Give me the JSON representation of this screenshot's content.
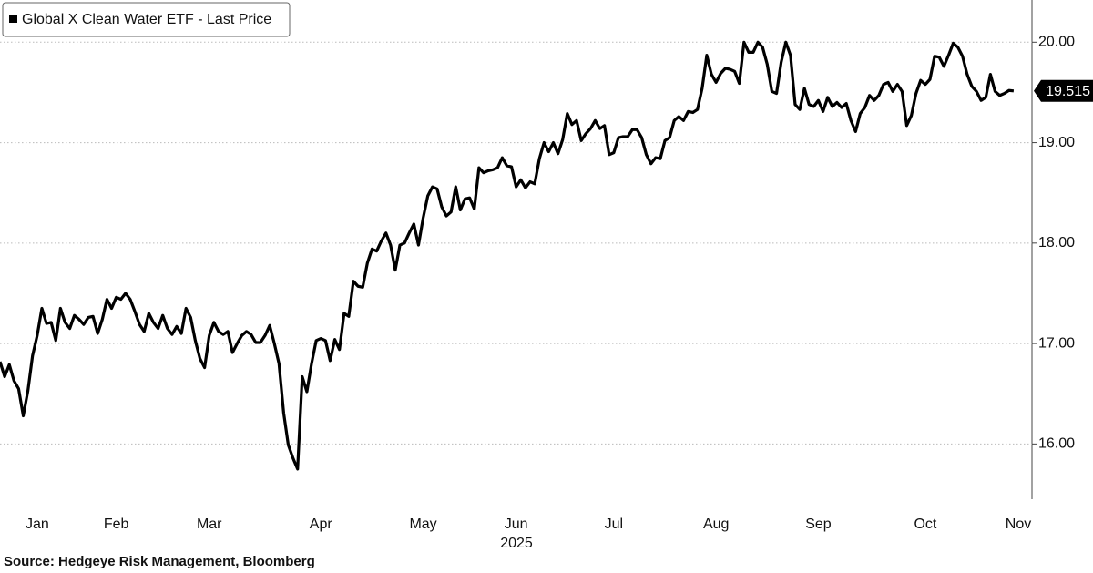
{
  "chart_data": {
    "type": "line",
    "year_label": "2025",
    "source": "Source: Hedgeye Risk Management, Bloomberg",
    "categories": [
      null,
      null,
      null,
      null,
      null,
      null,
      null,
      null,
      "Jan",
      null,
      null,
      null,
      null,
      null,
      null,
      null,
      null,
      null,
      null,
      null,
      null,
      null,
      null,
      null,
      null,
      "Feb",
      null,
      null,
      null,
      null,
      null,
      null,
      null,
      null,
      null,
      null,
      null,
      null,
      null,
      null,
      null,
      null,
      null,
      null,
      null,
      "Mar",
      null,
      null,
      null,
      null,
      null,
      null,
      null,
      null,
      null,
      null,
      null,
      null,
      null,
      null,
      null,
      null,
      null,
      null,
      null,
      null,
      null,
      null,
      null,
      "Apr",
      null,
      null,
      null,
      null,
      null,
      null,
      null,
      null,
      null,
      null,
      null,
      null,
      null,
      null,
      null,
      null,
      null,
      null,
      null,
      null,
      null,
      "May",
      null,
      null,
      null,
      null,
      null,
      null,
      null,
      null,
      null,
      null,
      null,
      null,
      null,
      null,
      null,
      null,
      null,
      null,
      null,
      "Jun",
      null,
      null,
      null,
      null,
      null,
      null,
      null,
      null,
      null,
      null,
      null,
      null,
      null,
      null,
      null,
      null,
      null,
      null,
      null,
      null,
      "Jul",
      null,
      null,
      null,
      null,
      null,
      null,
      null,
      null,
      null,
      null,
      null,
      null,
      null,
      null,
      null,
      null,
      null,
      null,
      null,
      null,
      null,
      "Aug",
      null,
      null,
      null,
      null,
      null,
      null,
      null,
      null,
      null,
      null,
      null,
      null,
      null,
      null,
      null,
      null,
      null,
      null,
      null,
      null,
      null,
      "Sep",
      null,
      null,
      null,
      null,
      null,
      null,
      null,
      null,
      null,
      null,
      null,
      null,
      null,
      null,
      null,
      null,
      null,
      null,
      null,
      null,
      null,
      null,
      "Oct",
      null,
      null,
      null,
      null,
      null,
      null,
      null,
      null,
      null,
      null,
      null,
      null,
      null,
      null,
      null,
      null,
      null,
      null,
      null,
      "Nov"
    ],
    "series": [
      {
        "name": "Global X Clean Water ETF - Last Price",
        "color": "#000000",
        "values": [
          16.82,
          16.67,
          16.79,
          16.63,
          16.55,
          16.28,
          16.53,
          16.88,
          17.08,
          17.35,
          17.2,
          17.21,
          17.03,
          17.35,
          17.21,
          17.15,
          17.28,
          17.24,
          17.19,
          17.26,
          17.27,
          17.1,
          17.24,
          17.44,
          17.35,
          17.46,
          17.44,
          17.5,
          17.44,
          17.32,
          17.19,
          17.12,
          17.3,
          17.21,
          17.15,
          17.28,
          17.15,
          17.09,
          17.17,
          17.1,
          17.35,
          17.26,
          17.03,
          16.85,
          16.76,
          17.08,
          17.21,
          17.12,
          17.09,
          17.12,
          16.91,
          17.0,
          17.08,
          17.12,
          17.09,
          17.01,
          17.01,
          17.08,
          17.18,
          17.0,
          16.8,
          16.31,
          15.99,
          15.86,
          15.75,
          16.67,
          16.52,
          16.8,
          17.03,
          17.05,
          17.03,
          16.83,
          17.04,
          16.94,
          17.3,
          17.27,
          17.62,
          17.57,
          17.56,
          17.8,
          17.94,
          17.92,
          18.02,
          18.1,
          17.98,
          17.73,
          17.98,
          18.0,
          18.1,
          18.19,
          17.98,
          18.25,
          18.47,
          18.56,
          18.54,
          18.36,
          18.27,
          18.31,
          18.56,
          18.33,
          18.44,
          18.45,
          18.34,
          18.75,
          18.7,
          18.72,
          18.73,
          18.75,
          18.85,
          18.77,
          18.76,
          18.56,
          18.63,
          18.55,
          18.61,
          18.59,
          18.84,
          19.0,
          18.91,
          19.0,
          18.89,
          19.03,
          19.29,
          19.18,
          19.22,
          19.02,
          19.09,
          19.14,
          19.22,
          19.14,
          19.17,
          18.88,
          18.9,
          19.05,
          19.06,
          19.06,
          19.13,
          19.13,
          19.05,
          18.88,
          18.79,
          18.85,
          18.84,
          19.02,
          19.05,
          19.22,
          19.26,
          19.22,
          19.31,
          19.3,
          19.33,
          19.54,
          19.87,
          19.68,
          19.6,
          19.69,
          19.74,
          19.73,
          19.71,
          19.59,
          20.0,
          19.9,
          19.9,
          20.0,
          19.95,
          19.78,
          19.51,
          19.49,
          19.8,
          20.0,
          19.87,
          19.38,
          19.33,
          19.54,
          19.38,
          19.36,
          19.42,
          19.31,
          19.45,
          19.36,
          19.4,
          19.35,
          19.39,
          19.22,
          19.11,
          19.29,
          19.35,
          19.47,
          19.42,
          19.47,
          19.58,
          19.6,
          19.51,
          19.58,
          19.51,
          19.17,
          19.27,
          19.49,
          19.62,
          19.58,
          19.63,
          19.86,
          19.85,
          19.76,
          19.87,
          19.99,
          19.95,
          19.86,
          19.68,
          19.56,
          19.51,
          19.42,
          19.45,
          19.68,
          19.51,
          19.47,
          19.49,
          19.52,
          19.515,
          null
        ]
      }
    ],
    "ylim": [
      15.45,
      20.42
    ],
    "yticks": [
      {
        "value": 16,
        "label": "16.00"
      },
      {
        "value": 17,
        "label": "17.00"
      },
      {
        "value": 18,
        "label": "18.00"
      },
      {
        "value": 19,
        "label": "19.00"
      },
      {
        "value": 20,
        "label": "20.00"
      }
    ],
    "grid": true,
    "legend": "upper left"
  }
}
